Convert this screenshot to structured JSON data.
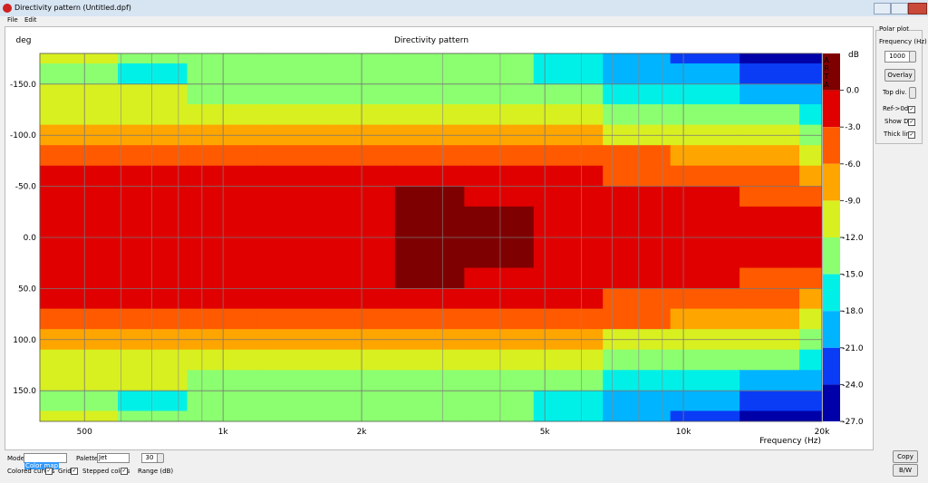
{
  "window": {
    "title": "Directivity pattern (Untitled.dpf)",
    "menu": [
      "File",
      "Edit"
    ]
  },
  "chart_data": {
    "type": "contour",
    "title": "Directivity pattern",
    "y_label": "deg",
    "x_label": "Frequency (Hz)",
    "colorbar_label": "dB",
    "logo": "ARTA",
    "x": [
      400,
      500,
      700,
      1000,
      1400,
      2000,
      2800,
      4000,
      5600,
      8000,
      11000,
      16000,
      20000
    ],
    "y": [
      -180,
      -160,
      -140,
      -120,
      -100,
      -80,
      -60,
      -40,
      -20,
      0,
      20,
      40,
      60,
      80,
      100,
      120,
      140,
      160,
      180
    ],
    "z": [
      [
        -12,
        -12,
        -13,
        -13,
        -13.5,
        -14,
        -14,
        -15,
        -18,
        -20,
        -23,
        -25,
        -26
      ],
      [
        -14,
        -13,
        -17,
        -14,
        -14,
        -14,
        -14,
        -15,
        -17,
        -19,
        -20,
        -23,
        -24
      ],
      [
        -11,
        -12,
        -12,
        -12.5,
        -13,
        -13,
        -13,
        -13,
        -14.5,
        -16,
        -17,
        -19,
        -20
      ],
      [
        -10,
        -10.5,
        -10.5,
        -11,
        -11,
        -11,
        -11,
        -11,
        -12,
        -13,
        -14,
        -15,
        -16
      ],
      [
        -7,
        -7.5,
        -7.5,
        -7.5,
        -8,
        -8,
        -8,
        -8,
        -9,
        -10,
        -11,
        -12,
        -13
      ],
      [
        -4.5,
        -4.5,
        -4.5,
        -4.5,
        -4.5,
        -4.5,
        -4.5,
        -5,
        -5,
        -6,
        -7.5,
        -9,
        -10.5
      ],
      [
        -2,
        -2,
        -2,
        -2,
        -2,
        -2,
        -1.5,
        -2,
        -2.5,
        -3.5,
        -4.5,
        -6,
        -7.5
      ],
      [
        -1.5,
        -1.5,
        -1.5,
        -1.5,
        -1.5,
        -1,
        1,
        -1,
        -1.5,
        -2,
        -2.5,
        -3.5,
        -4.5
      ],
      [
        -1.5,
        -1.5,
        -1.5,
        -1.5,
        -1.5,
        -1,
        1,
        0.5,
        -1.5,
        -1.5,
        -1.5,
        -2,
        -2.5
      ],
      [
        -1.5,
        -1.5,
        -1.5,
        -1.5,
        -1.5,
        -1,
        1,
        0.5,
        -1.5,
        -1.5,
        -1.5,
        -1.5,
        -2
      ],
      [
        -1.5,
        -1.5,
        -1.5,
        -1.5,
        -1.5,
        -1,
        1,
        0.5,
        -1.5,
        -1.5,
        -1.5,
        -2,
        -2.5
      ],
      [
        -1.5,
        -1.5,
        -1.5,
        -1.5,
        -1.5,
        -1,
        1,
        -1,
        -1.5,
        -2,
        -2.5,
        -3.5,
        -4.5
      ],
      [
        -2,
        -2,
        -2,
        -2,
        -2,
        -2,
        -1.5,
        -2,
        -2.5,
        -3.5,
        -4.5,
        -6,
        -7.5
      ],
      [
        -4.5,
        -4.5,
        -4.5,
        -4.5,
        -4.5,
        -4.5,
        -4.5,
        -5,
        -5,
        -6,
        -7.5,
        -9,
        -10.5
      ],
      [
        -7,
        -7.5,
        -7.5,
        -7.5,
        -8,
        -8,
        -8,
        -8,
        -9,
        -10,
        -11,
        -12,
        -13
      ],
      [
        -10,
        -10.5,
        -10.5,
        -11,
        -11,
        -11,
        -11,
        -11,
        -12,
        -13,
        -14,
        -15,
        -16
      ],
      [
        -11,
        -12,
        -12,
        -12.5,
        -13,
        -13,
        -13,
        -13,
        -14.5,
        -16,
        -17,
        -19,
        -20
      ],
      [
        -14,
        -13,
        -17,
        -14,
        -14,
        -14,
        -14,
        -15,
        -17,
        -19,
        -20,
        -23,
        -24
      ],
      [
        -12,
        -12,
        -13,
        -13,
        -13.5,
        -14,
        -14,
        -15,
        -18,
        -20,
        -23,
        -25,
        -26
      ]
    ],
    "xlim": [
      400,
      20000
    ],
    "x_log": true,
    "xticks": [
      500,
      {
        "value": 1000,
        "label": "1k"
      },
      {
        "value": 2000,
        "label": "2k"
      },
      {
        "value": 5000,
        "label": "5k"
      },
      {
        "value": 10000,
        "label": "10k"
      },
      {
        "value": 20000,
        "label": "20k"
      }
    ],
    "x_minor_grid": [
      600,
      700,
      800,
      900,
      3000,
      4000,
      6000,
      7000,
      8000,
      9000
    ],
    "ylim": [
      -180,
      180
    ],
    "y_inverted": true,
    "yticks": [
      {
        "value": -150,
        "label": "-150.0"
      },
      {
        "value": -100,
        "label": "-100.0"
      },
      {
        "value": -50,
        "label": "-50.0"
      },
      {
        "value": 0,
        "label": "0.0"
      },
      {
        "value": 50,
        "label": "50.0"
      },
      {
        "value": 100,
        "label": "100.0"
      },
      {
        "value": 150,
        "label": "150.0"
      }
    ],
    "grid": true,
    "clim": [
      -27,
      3
    ],
    "cticks": [
      {
        "value": 0,
        "label": "0.0"
      },
      {
        "value": -3,
        "label": "-3.0"
      },
      {
        "value": -6,
        "label": "-6.0"
      },
      {
        "value": -9,
        "label": "-9.0"
      },
      {
        "value": -12,
        "label": "-12.0"
      },
      {
        "value": -15,
        "label": "-15.0"
      },
      {
        "value": -18,
        "label": "-18.0"
      },
      {
        "value": -21,
        "label": "-21.0"
      },
      {
        "value": -24,
        "label": "-24.0"
      },
      {
        "value": -27,
        "label": "-27.0"
      }
    ],
    "colors": [
      "#7f0000",
      "#e00000",
      "#ff5a00",
      "#ffa500",
      "#d8f020",
      "#8cff70",
      "#00f0e8",
      "#00b4ff",
      "#0a3cf5",
      "#0000a8"
    ]
  },
  "polar_panel": {
    "title": "Polar plot",
    "frequency_label": "Frequency (Hz)",
    "frequency": 1000,
    "overlay": "Overlay",
    "top_div": "Top div.",
    "ref_0db": "Ref->0dB",
    "show_di": "Show DI",
    "thick_line": "Thick line"
  },
  "bottom": {
    "mode_label": "Mode",
    "mode": "Color map",
    "palette_label": "Palette",
    "palette": "Jet",
    "range": 30,
    "range_label": "Range (dB)",
    "colored_curves": "Colored curves",
    "grid": "Grid",
    "stepped_colors": "Stepped colors",
    "copy": "Copy",
    "bw": "B/W"
  }
}
